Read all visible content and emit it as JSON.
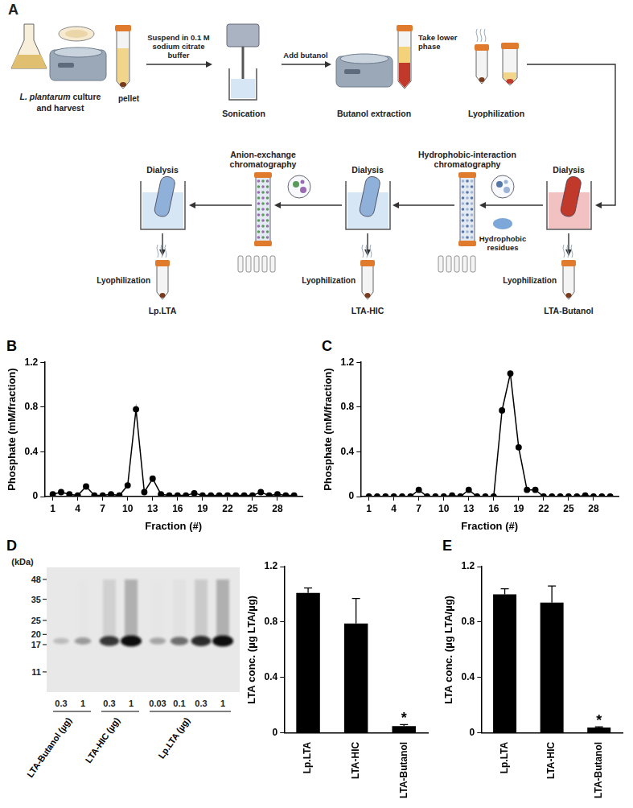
{
  "panel_a": {
    "letter": "A",
    "culture": {
      "italic": "L. plantarum",
      "text": "culture and harvest"
    },
    "pellet": "pellet",
    "arrow_1": "Suspend in 0.1 M sodium citrate buffer",
    "sonication": "Sonication",
    "arrow_2": "Add butanol",
    "extraction": "Butanol extraction",
    "lower_phase": "Take lower phase",
    "lyophilization_1": "Lyophilization",
    "dialysis_1": "Dialysis",
    "lyophilization_2": "Lyophilization",
    "product_1": "LTA-Butanol",
    "hic": "Hydrophobic-interaction chromatography",
    "hydrophobic": "Hydrophobic residues",
    "dialysis_2": "Dialysis",
    "lyophilization_3": "Lyophilization",
    "product_2": "LTA-HIC",
    "aec": "Anion-exchange chromatography",
    "dialysis_3": "Dialysis",
    "lyophilization_4": "Lyophilization",
    "product_3": "Lp.LTA"
  },
  "blot": {
    "panel": "D",
    "unit": "(kDa)",
    "ladder": [
      48,
      35,
      25,
      20,
      17,
      11
    ],
    "band_kda": 18,
    "groups": [
      {
        "label": "LTA-Butanol (µg)",
        "lanes": [
          {
            "amount": 0.3,
            "band_intensity": 0.2
          },
          {
            "amount": 1,
            "band_intensity": 0.35
          }
        ]
      },
      {
        "label": "LTA-HIC (µg)",
        "lanes": [
          {
            "amount": 0.3,
            "band_intensity": 0.8
          },
          {
            "amount": 1,
            "band_intensity": 1
          }
        ]
      },
      {
        "label": "Lp.LTA (µg)",
        "lanes": [
          {
            "amount": 0.03,
            "band_intensity": 0.3
          },
          {
            "amount": 0.1,
            "band_intensity": 0.55
          },
          {
            "amount": 0.3,
            "band_intensity": 0.85
          },
          {
            "amount": 1,
            "band_intensity": 1
          }
        ]
      }
    ]
  },
  "chart_data": [
    {
      "panel": "B",
      "type": "line",
      "color": "#000000",
      "marker": "circle",
      "grid": false,
      "x": [
        1,
        2,
        3,
        4,
        5,
        6,
        7,
        8,
        9,
        10,
        11,
        12,
        13,
        14,
        15,
        16,
        17,
        18,
        19,
        20,
        21,
        22,
        23,
        24,
        25,
        26,
        27,
        28,
        29,
        30
      ],
      "values": [
        0.02,
        0.04,
        0.02,
        0.01,
        0.09,
        0.01,
        0.01,
        0.02,
        0.01,
        0.1,
        0.78,
        0.04,
        0.16,
        0.02,
        0.01,
        0.01,
        0.01,
        0.03,
        0.01,
        0.01,
        0.01,
        0.01,
        0.01,
        0.01,
        0.01,
        0.04,
        0.01,
        0.02,
        0.01,
        0.01
      ],
      "xlim": [
        0,
        31
      ],
      "xticks": [
        1,
        4,
        7,
        10,
        13,
        16,
        19,
        22,
        25,
        28
      ],
      "ylim": [
        0,
        1.2
      ],
      "yticks": [
        0,
        0.4,
        0.8,
        1.2
      ],
      "x_label": "Fraction (#)",
      "y_label": "Phosphate (mM/fraction)"
    },
    {
      "panel": "C",
      "type": "line",
      "color": "#000000",
      "marker": "circle",
      "grid": false,
      "x": [
        1,
        2,
        3,
        4,
        5,
        6,
        7,
        8,
        9,
        10,
        11,
        12,
        13,
        14,
        15,
        16,
        17,
        18,
        19,
        20,
        21,
        22,
        23,
        24,
        25,
        26,
        27,
        28,
        29,
        30
      ],
      "values": [
        0,
        0,
        0,
        0,
        0,
        0,
        0.06,
        0,
        0,
        0,
        0.01,
        0,
        0.06,
        0,
        0,
        0,
        0.77,
        1.1,
        0.44,
        0.06,
        0.06,
        0,
        0,
        0,
        0,
        0,
        0.01,
        0,
        0,
        0
      ],
      "xlim": [
        0,
        31
      ],
      "xticks": [
        1,
        4,
        7,
        10,
        13,
        16,
        19,
        22,
        25,
        28
      ],
      "ylim": [
        0,
        1.2
      ],
      "yticks": [
        0,
        0.4,
        0.8,
        1.2
      ],
      "x_label": "Fraction (#)",
      "y_label": "Phosphate (mM/fraction)"
    },
    {
      "type": "bar",
      "color": "#000000",
      "grid": false,
      "categories": [
        "Lp.LTA",
        "LTA-HIC",
        "LTA-Butanol"
      ],
      "values": [
        1.01,
        0.79,
        0.05
      ],
      "errors": [
        0.035,
        0.18,
        0.01
      ],
      "ylim": [
        0,
        1.2
      ],
      "yticks": [
        0,
        0.4,
        0.8,
        1.2
      ],
      "y_label": "LTA conc. (µg LTA/µg)",
      "annotations": [
        {
          "category": "LTA-Butanol",
          "text": "*"
        }
      ]
    },
    {
      "panel": "E",
      "type": "bar",
      "color": "#000000",
      "grid": false,
      "categories": [
        "Lp.LTA",
        "LTA-HIC",
        "LTA-Butanol"
      ],
      "values": [
        1.0,
        0.94,
        0.04
      ],
      "errors": [
        0.04,
        0.12,
        0.005
      ],
      "ylim": [
        0,
        1.2
      ],
      "yticks": [
        0,
        0.4,
        0.8,
        1.2
      ],
      "y_label": "LTA conc. (µg LTA/µg)",
      "annotations": [
        {
          "category": "LTA-Butanol",
          "text": "*"
        }
      ]
    }
  ]
}
